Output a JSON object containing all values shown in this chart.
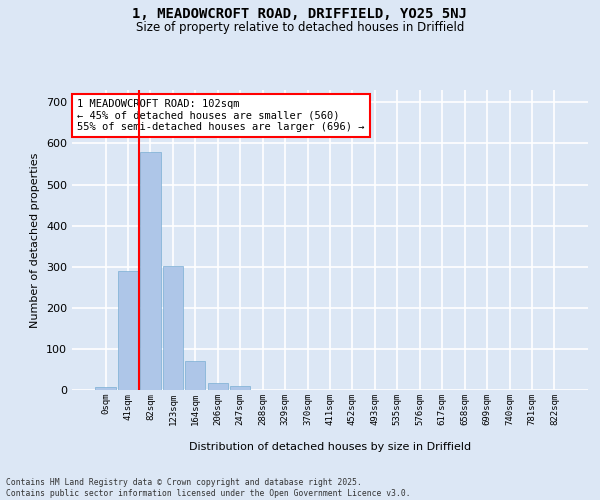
{
  "title_line1": "1, MEADOWCROFT ROAD, DRIFFIELD, YO25 5NJ",
  "title_line2": "Size of property relative to detached houses in Driffield",
  "xlabel": "Distribution of detached houses by size in Driffield",
  "ylabel": "Number of detached properties",
  "bin_labels": [
    "0sqm",
    "41sqm",
    "82sqm",
    "123sqm",
    "164sqm",
    "206sqm",
    "247sqm",
    "288sqm",
    "329sqm",
    "370sqm",
    "411sqm",
    "452sqm",
    "493sqm",
    "535sqm",
    "576sqm",
    "617sqm",
    "658sqm",
    "699sqm",
    "740sqm",
    "781sqm",
    "822sqm"
  ],
  "bar_values": [
    8,
    289,
    578,
    302,
    70,
    16,
    10,
    0,
    0,
    0,
    0,
    0,
    0,
    0,
    0,
    0,
    0,
    0,
    0,
    0,
    0
  ],
  "bar_color": "#aec6e8",
  "bar_edge_color": "#7aafd4",
  "background_color": "#dce7f5",
  "grid_color": "#ffffff",
  "vline_x": 1.5,
  "vline_color": "red",
  "annotation_text": "1 MEADOWCROFT ROAD: 102sqm\n← 45% of detached houses are smaller (560)\n55% of semi-detached houses are larger (696) →",
  "annotation_box_color": "white",
  "annotation_box_edgecolor": "red",
  "ylim": [
    0,
    730
  ],
  "yticks": [
    0,
    100,
    200,
    300,
    400,
    500,
    600,
    700
  ],
  "footer_line1": "Contains HM Land Registry data © Crown copyright and database right 2025.",
  "footer_line2": "Contains public sector information licensed under the Open Government Licence v3.0."
}
